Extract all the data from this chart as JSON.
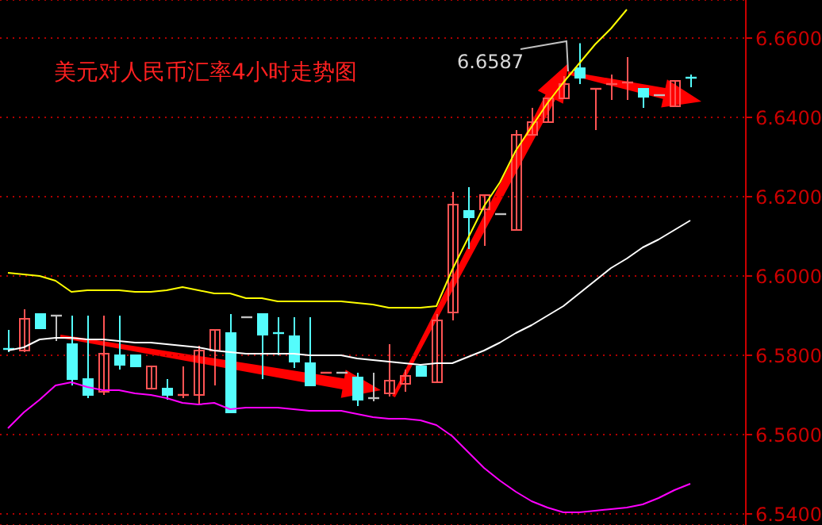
{
  "chart_data": {
    "type": "candlestick",
    "title": "美元对人民币汇率4小时走势图",
    "annotations": [
      "6.6587"
    ],
    "categories": [
      null,
      null,
      null,
      null,
      null,
      null,
      null,
      null,
      null,
      null,
      null,
      null,
      null,
      null,
      null,
      null,
      null,
      null,
      null,
      null,
      null,
      null,
      null,
      null,
      null,
      null,
      null,
      null,
      null,
      null,
      null,
      null,
      null,
      null,
      null,
      null,
      null,
      null,
      null,
      null,
      null,
      null,
      null,
      null
    ],
    "ohlc": [
      [
        6.5816,
        6.5864,
        6.5808,
        6.5812
      ],
      [
        6.5812,
        6.5916,
        6.5808,
        6.5892
      ],
      [
        6.5904,
        6.5904,
        6.5868,
        6.5868
      ],
      [
        6.59,
        6.59,
        6.5836,
        6.59
      ],
      [
        6.5828,
        6.59,
        6.5724,
        6.574
      ],
      [
        6.574,
        6.59,
        6.5692,
        6.57
      ],
      [
        6.5708,
        6.59,
        6.57,
        6.5804
      ],
      [
        6.58,
        6.59,
        6.5764,
        6.5776
      ],
      [
        6.58,
        6.58,
        6.5772,
        6.5772
      ],
      [
        6.5716,
        6.5772,
        6.5716,
        6.5772
      ],
      [
        6.5716,
        6.574,
        6.5688,
        6.57
      ],
      [
        6.5698,
        6.5772,
        6.5692,
        6.57
      ],
      [
        6.57,
        6.5824,
        6.5676,
        6.5812
      ],
      [
        6.5812,
        6.5864,
        6.5724,
        6.5864
      ],
      [
        6.5856,
        6.5904,
        6.5656,
        6.5656
      ],
      [
        6.5896,
        6.5896,
        6.5896,
        6.5896
      ],
      [
        6.5904,
        6.5904,
        6.574,
        6.5852
      ],
      [
        6.5856,
        6.5896,
        6.58,
        6.5856
      ],
      [
        6.5848,
        6.5896,
        6.5768,
        6.5784
      ],
      [
        6.578,
        6.5896,
        6.5724,
        6.5724
      ],
      [
        6.5756,
        6.5756,
        6.5756,
        6.5756
      ],
      [
        6.5756,
        6.5756,
        6.5756,
        6.5756
      ],
      [
        6.5744,
        6.5756,
        6.5672,
        6.5688
      ],
      [
        6.5692,
        6.5756,
        6.5684,
        6.5692
      ],
      [
        6.5704,
        6.5828,
        6.5696,
        6.5736
      ],
      [
        6.5728,
        6.5764,
        6.5708,
        6.5748
      ],
      [
        6.5772,
        6.5772,
        6.5748,
        6.5748
      ],
      [
        6.5732,
        6.5904,
        6.5732,
        6.5888
      ],
      [
        6.5908,
        6.6212,
        6.5888,
        6.618
      ],
      [
        6.6164,
        6.6224,
        6.6068,
        6.6148
      ],
      [
        6.6168,
        6.6204,
        6.6076,
        6.6204
      ],
      [
        6.6156,
        6.6156,
        6.6156,
        6.6156
      ],
      [
        6.6116,
        6.6368,
        6.6116,
        6.6356
      ],
      [
        6.6356,
        6.6424,
        6.6356,
        6.6388
      ],
      [
        6.6388,
        6.6448,
        6.6388,
        6.6448
      ],
      [
        6.6448,
        6.6504,
        6.6448,
        6.6484
      ],
      [
        6.6524,
        6.6587,
        6.6484,
        6.65
      ],
      [
        6.6472,
        6.6472,
        6.6368,
        6.6472
      ],
      [
        6.6484,
        6.6508,
        6.6444,
        6.6484
      ],
      [
        6.6488,
        6.6552,
        6.6444,
        6.6488
      ],
      [
        6.6472,
        6.6472,
        6.6424,
        6.6452
      ],
      [
        6.6456,
        6.6456,
        6.6456,
        6.6456
      ],
      [
        6.6428,
        6.6492,
        6.6428,
        6.6492
      ],
      [
        6.65,
        6.6508,
        6.6476,
        6.65
      ]
    ],
    "colors": [
      "#54fcfc",
      "#ff5454",
      "#54fcfc",
      "#c0c0c0",
      "#54fcfc",
      "#54fcfc",
      "#ff5454",
      "#54fcfc",
      "#54fcfc",
      "#ff5454",
      "#54fcfc",
      "#ff5454",
      "#ff5454",
      "#ff5454",
      "#54fcfc",
      "#c0c0c0",
      "#54fcfc",
      "#54fcfc",
      "#54fcfc",
      "#54fcfc",
      "#ff5454",
      "#c0c0c0",
      "#54fcfc",
      "#c0c0c0",
      "#ff5454",
      "#ff5454",
      "#54fcfc",
      "#ff5454",
      "#ff5454",
      "#54fcfc",
      "#ff5454",
      "#c0c0c0",
      "#ff5454",
      "#ff5454",
      "#ff5454",
      "#ff5454",
      "#54fcfc",
      "#ff5454",
      "#ff5454",
      "#ff5454",
      "#54fcfc",
      "#c0c0c0",
      "#ff5454",
      "#54fcfc"
    ],
    "series": [
      {
        "type": "line",
        "color": "#ffff00",
        "values": [
          6.6008,
          6.6004,
          6.6,
          6.5988,
          6.596,
          6.5964,
          6.5964,
          6.5964,
          6.596,
          6.596,
          6.5964,
          6.5972,
          6.5964,
          6.5956,
          6.5956,
          6.5944,
          6.5944,
          6.5936,
          6.5936,
          6.5936,
          6.5936,
          6.5936,
          6.5932,
          6.5928,
          6.592,
          6.592,
          6.592,
          6.5924,
          6.6016,
          6.6096,
          6.6176,
          6.6236,
          6.6316,
          6.6376,
          6.6436,
          6.6488,
          6.6536,
          6.6584,
          6.6624,
          6.6672,
          null,
          null,
          null,
          null
        ]
      },
      {
        "type": "line",
        "color": "#ffffff",
        "values": [
          6.5812,
          6.582,
          6.584,
          6.5844,
          6.5844,
          6.584,
          6.584,
          6.5836,
          6.5832,
          6.5832,
          6.5828,
          6.5824,
          6.582,
          6.5812,
          6.5808,
          6.5804,
          6.5804,
          6.5804,
          6.5804,
          6.58,
          6.58,
          6.58,
          6.5792,
          6.5788,
          6.5784,
          6.578,
          6.5776,
          6.578,
          6.578,
          6.5796,
          6.5812,
          6.5832,
          6.5856,
          6.5876,
          6.59,
          6.5924,
          6.5956,
          6.5988,
          6.602,
          6.6044,
          6.6072,
          6.6092,
          6.6116,
          6.614
        ]
      },
      {
        "type": "line",
        "color": "#ff00ff",
        "values": [
          6.5616,
          6.5656,
          6.5688,
          6.5724,
          6.5732,
          6.572,
          6.5712,
          6.5712,
          6.5704,
          6.57,
          6.5692,
          6.568,
          6.5676,
          6.568,
          6.5664,
          6.5668,
          6.5668,
          6.5668,
          6.5664,
          6.566,
          6.566,
          6.566,
          6.5652,
          6.5644,
          6.564,
          6.564,
          6.5636,
          6.5624,
          6.5596,
          6.5556,
          6.5516,
          6.5484,
          6.5456,
          6.5432,
          6.5416,
          6.5404,
          6.5404,
          6.5408,
          6.5412,
          6.5416,
          6.5424,
          6.544,
          6.546,
          6.5476
        ]
      }
    ],
    "ylim": [
      6.5372,
      6.6696
    ],
    "yticks": [
      {
        "value": 6.54,
        "label": "6.5400"
      },
      {
        "value": 6.56,
        "label": "6.5600"
      },
      {
        "value": 6.58,
        "label": "6.5800"
      },
      {
        "value": 6.6,
        "label": "6.6000"
      },
      {
        "value": 6.62,
        "label": "6.6200"
      },
      {
        "value": 6.64,
        "label": "6.6400"
      },
      {
        "value": 6.66,
        "label": "6.6600"
      }
    ],
    "grid": "y",
    "marker": "none",
    "line_style": "solid"
  }
}
